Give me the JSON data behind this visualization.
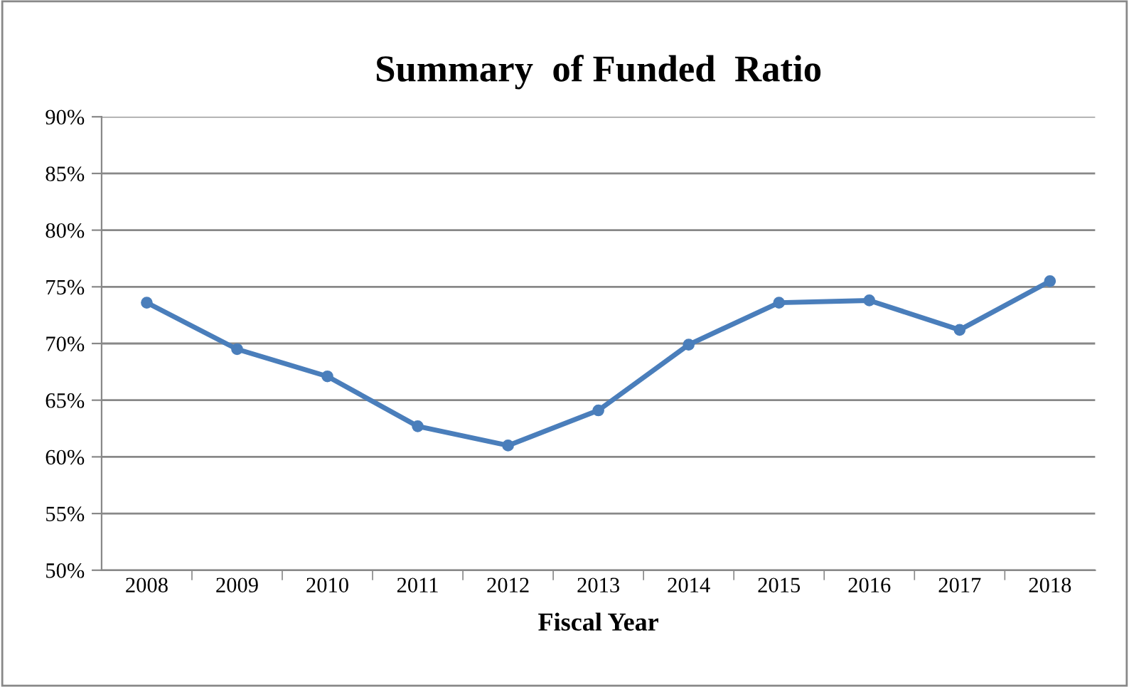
{
  "chart_data": {
    "type": "line",
    "title": "Summary  of Funded  Ratio",
    "xlabel": "Fiscal Year",
    "categories": [
      "2008",
      "2009",
      "2010",
      "2011",
      "2012",
      "2013",
      "2014",
      "2015",
      "2016",
      "2017",
      "2018"
    ],
    "series": [
      {
        "color": "#4a7ebb",
        "values": [
          73.6,
          69.5,
          67.1,
          62.7,
          61.0,
          64.1,
          69.9,
          73.6,
          73.8,
          71.2,
          75.5
        ]
      }
    ],
    "ylim": [
      50,
      90
    ],
    "yticks": [
      {
        "value": 50,
        "label": "50%"
      },
      {
        "value": 55,
        "label": "55%"
      },
      {
        "value": 60,
        "label": "60%"
      },
      {
        "value": 65,
        "label": "65%"
      },
      {
        "value": 70,
        "label": "70%"
      },
      {
        "value": 75,
        "label": "75%"
      },
      {
        "value": 80,
        "label": "80%"
      },
      {
        "value": 85,
        "label": "85%"
      },
      {
        "value": 90,
        "label": "90%"
      }
    ],
    "grid": "y",
    "marker": "circle",
    "line_style": "solid"
  }
}
